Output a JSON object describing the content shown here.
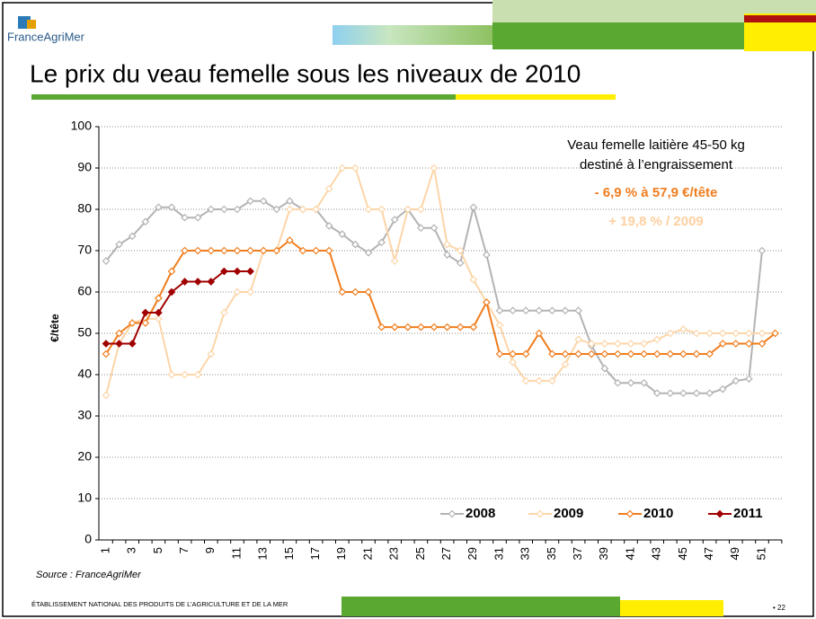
{
  "header": {
    "logo": "FranceAgriMer",
    "title": "Le prix du veau femelle sous les niveaux de 2010"
  },
  "chart_data": {
    "type": "line",
    "y_label": "€/tête",
    "annotations": [
      "Veau femelle laitière 45-50 kg",
      "destiné à l’engraissement",
      "- 6,9 % à 57,9 €/tête",
      "+ 19,8 % / 2009"
    ],
    "annotation_colors": [
      "#000000",
      "#000000",
      "#f07d1e",
      "#fcd0a0"
    ],
    "categories": [
      "1",
      null,
      "3",
      null,
      "5",
      null,
      "7",
      null,
      "9",
      null,
      "11",
      null,
      "13",
      null,
      "15",
      null,
      "17",
      null,
      "19",
      null,
      "21",
      null,
      "23",
      null,
      "25",
      null,
      "27",
      null,
      "29",
      null,
      "31",
      null,
      "33",
      null,
      "35",
      null,
      "37",
      null,
      "39",
      null,
      "41",
      null,
      "43",
      null,
      "45",
      null,
      "47",
      null,
      "49",
      null,
      "51",
      null
    ],
    "series": [
      {
        "name": "2008",
        "color": "#b3b3b3",
        "values": [
          67.5,
          71.5,
          73.5,
          77,
          80.5,
          80.5,
          78,
          78,
          80,
          80,
          80,
          82,
          82,
          80,
          82,
          80,
          80,
          76,
          74,
          71.5,
          69.5,
          72,
          77.5,
          80,
          75.5,
          75.5,
          69,
          67,
          80.5,
          69,
          55.5,
          55.5,
          55.5,
          55.5,
          55.5,
          55.5,
          55.5,
          47,
          41.5,
          38,
          38,
          38,
          35.5,
          35.5,
          35.5,
          35.5,
          35.5,
          36.5,
          38.5,
          39,
          70,
          null
        ]
      },
      {
        "name": "2009",
        "color": "#fcd5a8",
        "values": [
          35,
          47.5,
          52.5,
          53.5,
          53.5,
          40,
          40,
          40,
          45,
          55,
          60,
          60,
          70,
          70,
          80,
          80,
          80,
          85,
          90,
          90,
          80,
          80,
          67.5,
          80,
          80,
          90,
          71.5,
          70,
          63,
          57.5,
          52,
          43,
          38.5,
          38.5,
          38.5,
          42.5,
          48.5,
          47.5,
          47.5,
          47.5,
          47.5,
          47.5,
          48.5,
          50,
          51,
          50,
          50,
          50,
          50,
          50,
          50,
          50
        ]
      },
      {
        "name": "2010",
        "color": "#f07d1e",
        "values": [
          45,
          50,
          52.5,
          52.5,
          58.5,
          65,
          70,
          70,
          70,
          70,
          70,
          70,
          70,
          70,
          72.5,
          70,
          70,
          70,
          60,
          60,
          60,
          51.5,
          51.5,
          51.5,
          51.5,
          51.5,
          51.5,
          51.5,
          51.5,
          57.5,
          45,
          45,
          45,
          50,
          45,
          45,
          45,
          45,
          45,
          45,
          45,
          45,
          45,
          45,
          45,
          45,
          45,
          47.5,
          47.5,
          47.5,
          47.5,
          50
        ]
      },
      {
        "name": "2011",
        "color": "#a00000",
        "values": [
          47.5,
          47.5,
          47.5,
          55,
          55,
          60,
          62.5,
          62.5,
          62.5,
          65,
          65,
          65,
          null,
          null,
          null,
          null,
          null,
          null,
          null,
          null,
          null,
          null,
          null,
          null,
          null,
          null,
          null,
          null,
          null,
          null,
          null,
          null,
          null,
          null,
          null,
          null,
          null,
          null,
          null,
          null,
          null,
          null,
          null,
          null,
          null,
          null,
          null,
          null,
          null,
          null,
          null,
          null
        ]
      }
    ],
    "ylim": [
      0,
      100
    ],
    "yticks": [
      0,
      10,
      20,
      30,
      40,
      50,
      60,
      70,
      80,
      90,
      100
    ],
    "grid": true,
    "legend": "bottom-right"
  },
  "footer": {
    "source": "Source : FranceAgriMer",
    "institution": "ÉTABLISSEMENT NATIONAL DES PRODUITS DE L’AGRICULTURE ET DE LA MER",
    "page": "• 22"
  }
}
